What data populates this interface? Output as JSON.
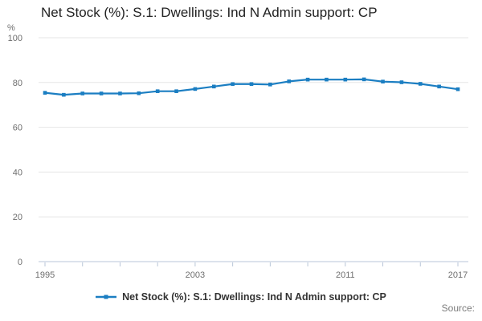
{
  "chart_data": {
    "type": "line",
    "title": "Net Stock (%): S.1: Dwellings: Ind N Admin support: CP",
    "unit_label": "%",
    "x": [
      1995,
      1996,
      1997,
      1998,
      1999,
      2000,
      2001,
      2002,
      2003,
      2004,
      2005,
      2006,
      2007,
      2008,
      2009,
      2010,
      2011,
      2012,
      2013,
      2014,
      2015,
      2016,
      2017
    ],
    "series": [
      {
        "name": "Net Stock (%): S.1: Dwellings: Ind N Admin support: CP",
        "values": [
          75.4,
          74.5,
          75.1,
          75.1,
          75.1,
          75.2,
          76.1,
          76.1,
          77.1,
          78.2,
          79.3,
          79.3,
          79.1,
          80.5,
          81.3,
          81.3,
          81.3,
          81.4,
          80.4,
          80.1,
          79.4,
          78.2,
          77.0
        ]
      }
    ],
    "ylim": [
      0,
      100
    ],
    "yticks": [
      0,
      20,
      40,
      60,
      80,
      100
    ],
    "xticks": [
      1995,
      1997,
      1999,
      2001,
      2003,
      2005,
      2007,
      2009,
      2011,
      2013,
      2015,
      2017
    ],
    "xtick_labels": [
      "1995",
      "2003",
      "2011",
      "2017"
    ],
    "grid": "horizontal-only",
    "legend_position": "bottom-center",
    "colors": {
      "line": "#1b7ec2",
      "grid": "#e6e6e6",
      "axis": "#b9c6d8",
      "tick_text": "#6e6e6e",
      "title_text": "#222222",
      "legend_text": "#333333",
      "source_text": "#7b7b7b"
    }
  },
  "footer": {
    "source_label": "Source:"
  }
}
